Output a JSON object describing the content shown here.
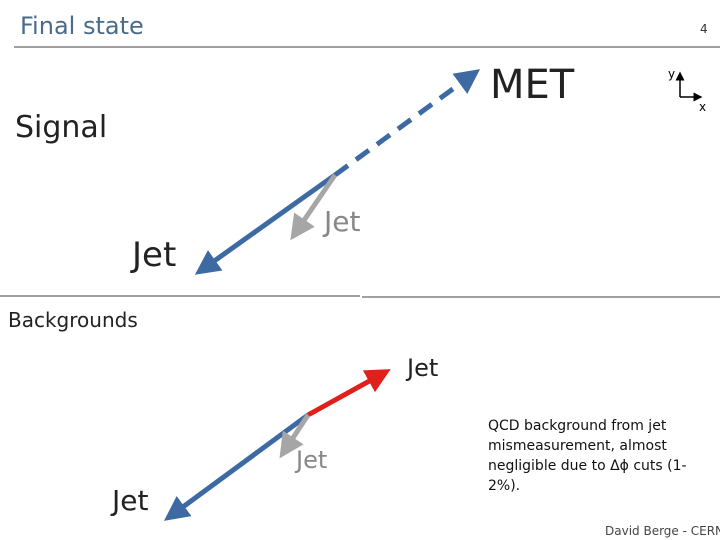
{
  "header": {
    "title": "Final state",
    "page_number": "4"
  },
  "signal": {
    "label": "Signal",
    "met_label": "MET",
    "axis_y": "y",
    "axis_x": "x",
    "jet_left": "Jet",
    "jet_gray": "Jet"
  },
  "backgrounds": {
    "label": "Backgrounds",
    "jet_red": "Jet",
    "jet_gray": "Jet",
    "jet_left": "Jet",
    "note_lines": [
      "QCD background from jet",
      "mismeasurement, almost",
      "negligible due to Δϕ cuts (1-",
      "2%)."
    ]
  },
  "footer": {
    "author": "David Berge - CERN"
  }
}
